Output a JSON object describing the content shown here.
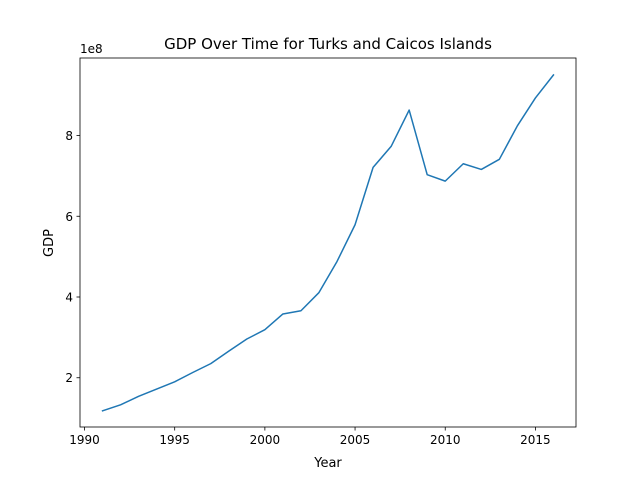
{
  "chart_data": {
    "type": "line",
    "title": "GDP Over Time for Turks and Caicos Islands",
    "xlabel": "Year",
    "ylabel": "GDP",
    "y_offset_label": "1e8",
    "xlim": [
      1989.75,
      2017.25
    ],
    "ylim": [
      0.78,
      9.92
    ],
    "x_ticks": [
      1990,
      1995,
      2000,
      2005,
      2010,
      2015
    ],
    "x_tick_labels": [
      "1990",
      "1995",
      "2000",
      "2005",
      "2010",
      "2015"
    ],
    "y_ticks": [
      2,
      4,
      6,
      8
    ],
    "y_tick_labels": [
      "2",
      "4",
      "6",
      "8"
    ],
    "grid": false,
    "color": "#1f77b4",
    "series": [
      {
        "x": [
          1991,
          1992,
          1993,
          1994,
          1995,
          1996,
          1997,
          1998,
          1999,
          2000,
          2001,
          2002,
          2003,
          2004,
          2005,
          2006,
          2007,
          2008,
          2009,
          2010,
          2011,
          2012,
          2013,
          2014,
          2015,
          2016
        ],
        "values": [
          1.18,
          1.33,
          1.54,
          1.72,
          1.9,
          2.13,
          2.35,
          2.66,
          2.96,
          3.19,
          3.58,
          3.66,
          4.11,
          4.88,
          5.79,
          7.21,
          7.73,
          8.63,
          7.03,
          6.87,
          7.3,
          7.16,
          7.41,
          8.24,
          8.93,
          9.5
        ]
      }
    ]
  }
}
